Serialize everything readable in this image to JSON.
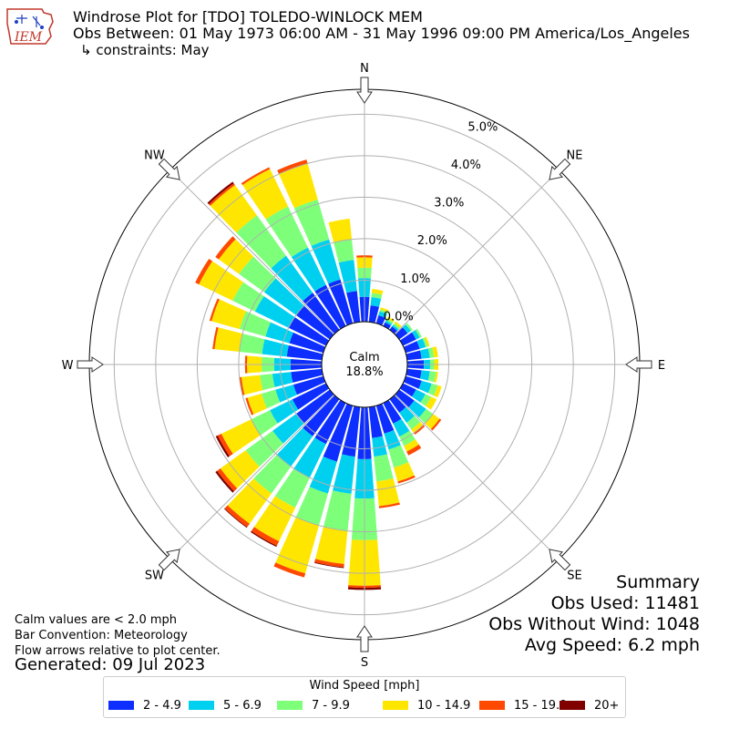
{
  "header": {
    "title": "Windrose Plot for [TDO] TOLEDO-WINLOCK MEM",
    "obs_between": "Obs Between: 01 May 1973 06:00 AM - 31 May 1996 09:00 PM America/Los_Angeles",
    "constraints": "↳ constraints: May",
    "logo_text": "IEM"
  },
  "notes": {
    "calm_values": "Calm values are < 2.0 mph",
    "bar_convention": "Bar Convention: Meteorology",
    "flow_arrows": "Flow arrows relative to plot center.",
    "generated": "Generated: 09 Jul 2023"
  },
  "summary": {
    "title": "Summary",
    "obs_used": "Obs Used: 11481",
    "obs_without_wind": "Obs Without Wind: 1048",
    "avg_speed": "Avg Speed: 6.2 mph"
  },
  "legend": {
    "title": "Wind Speed [mph]",
    "items": [
      {
        "label": "2 - 4.9",
        "color": "#0d2eff"
      },
      {
        "label": "5 - 6.9",
        "color": "#00d0f0"
      },
      {
        "label": "7 - 9.9",
        "color": "#7dff7a"
      },
      {
        "label": "10 - 14.9",
        "color": "#ffe600"
      },
      {
        "label": "15 - 19.9",
        "color": "#ff4800"
      },
      {
        "label": "20+",
        "color": "#800000"
      }
    ]
  },
  "chart_data": {
    "type": "windrose",
    "calm_label": "Calm",
    "calm_value": "18.8%",
    "calm_percent": 18.8,
    "radial_ticks": [
      0.0,
      1.0,
      2.0,
      3.0,
      4.0,
      5.0
    ],
    "radial_tick_labels": [
      "0.0%",
      "1.0%",
      "2.0%",
      "3.0%",
      "4.0%",
      "5.0%"
    ],
    "radial_max": 5.6,
    "directions": [
      "N",
      "NE",
      "E",
      "SE",
      "S",
      "SW",
      "W",
      "NW"
    ],
    "bins": [
      "2 - 4.9",
      "5 - 6.9",
      "7 - 9.9",
      "10 - 14.9",
      "15 - 19.9",
      "20+"
    ],
    "sectors": [
      {
        "dir": 0,
        "cum": [
          0.6,
          1.05,
          1.3,
          1.55,
          1.6,
          1.6
        ]
      },
      {
        "dir": 10,
        "cum": [
          0.4,
          0.6,
          0.7,
          0.8,
          0.8,
          0.8
        ]
      },
      {
        "dir": 20,
        "cum": [
          0.2,
          0.3,
          0.35,
          0.4,
          0.4,
          0.4
        ]
      },
      {
        "dir": 30,
        "cum": [
          0.1,
          0.15,
          0.2,
          0.25,
          0.25,
          0.25
        ]
      },
      {
        "dir": 40,
        "cum": [
          0.1,
          0.15,
          0.2,
          0.25,
          0.25,
          0.25
        ]
      },
      {
        "dir": 50,
        "cum": [
          0.25,
          0.35,
          0.4,
          0.4,
          0.4,
          0.4
        ]
      },
      {
        "dir": 60,
        "cum": [
          0.35,
          0.45,
          0.5,
          0.5,
          0.5,
          0.5
        ]
      },
      {
        "dir": 70,
        "cum": [
          0.35,
          0.5,
          0.55,
          0.6,
          0.6,
          0.6
        ]
      },
      {
        "dir": 80,
        "cum": [
          0.35,
          0.55,
          0.65,
          0.75,
          0.75,
          0.75
        ]
      },
      {
        "dir": 90,
        "cum": [
          0.4,
          0.55,
          0.65,
          0.75,
          0.75,
          0.75
        ]
      },
      {
        "dir": 100,
        "cum": [
          0.35,
          0.55,
          0.7,
          0.75,
          0.75,
          0.75
        ]
      },
      {
        "dir": 110,
        "cum": [
          0.4,
          0.65,
          0.8,
          0.9,
          0.9,
          0.9
        ]
      },
      {
        "dir": 120,
        "cum": [
          0.35,
          0.6,
          0.75,
          0.9,
          0.9,
          0.9
        ]
      },
      {
        "dir": 130,
        "cum": [
          0.45,
          0.8,
          1.0,
          1.2,
          1.25,
          1.25
        ]
      },
      {
        "dir": 140,
        "cum": [
          0.4,
          0.7,
          0.9,
          1.0,
          1.05,
          1.05
        ]
      },
      {
        "dir": 150,
        "cum": [
          0.55,
          0.9,
          1.15,
          1.3,
          1.4,
          1.4
        ]
      },
      {
        "dir": 160,
        "cum": [
          0.7,
          1.1,
          1.55,
          1.9,
          1.95,
          1.95
        ]
      },
      {
        "dir": 170,
        "cum": [
          0.75,
          1.2,
          1.8,
          2.4,
          2.45,
          2.45
        ]
      },
      {
        "dir": 180,
        "cum": [
          1.25,
          2.2,
          3.2,
          4.3,
          4.35,
          4.4
        ]
      },
      {
        "dir": 190,
        "cum": [
          1.2,
          2.1,
          3.0,
          3.8,
          3.88,
          3.9
        ]
      },
      {
        "dir": 200,
        "cum": [
          1.4,
          2.2,
          3.0,
          4.2,
          4.3,
          4.3
        ]
      },
      {
        "dir": 210,
        "cum": [
          1.1,
          2.0,
          2.8,
          3.7,
          3.82,
          3.85
        ]
      },
      {
        "dir": 220,
        "cum": [
          1.1,
          2.0,
          2.8,
          3.7,
          3.8,
          3.82
        ]
      },
      {
        "dir": 230,
        "cum": [
          1.0,
          1.7,
          2.5,
          3.25,
          3.35,
          3.4
        ]
      },
      {
        "dir": 240,
        "cum": [
          0.9,
          1.5,
          2.0,
          2.8,
          2.9,
          2.95
        ]
      },
      {
        "dir": 250,
        "cum": [
          0.75,
          1.2,
          1.55,
          1.9,
          1.95,
          1.95
        ]
      },
      {
        "dir": 260,
        "cum": [
          0.75,
          1.2,
          1.5,
          1.95,
          2.0,
          2.0
        ]
      },
      {
        "dir": 270,
        "cum": [
          0.75,
          1.15,
          1.45,
          1.8,
          1.85,
          1.85
        ]
      },
      {
        "dir": 280,
        "cum": [
          0.85,
          1.45,
          2.0,
          2.6,
          2.65,
          2.65
        ]
      },
      {
        "dir": 290,
        "cum": [
          0.85,
          1.45,
          2.1,
          2.8,
          2.85,
          2.85
        ]
      },
      {
        "dir": 300,
        "cum": [
          1.0,
          1.9,
          2.5,
          3.4,
          3.5,
          3.5
        ]
      },
      {
        "dir": 310,
        "cum": [
          1.0,
          1.95,
          2.7,
          3.3,
          3.4,
          3.4
        ]
      },
      {
        "dir": 320,
        "cum": [
          1.1,
          2.2,
          3.4,
          4.3,
          4.35,
          4.4
        ]
      },
      {
        "dir": 330,
        "cum": [
          1.1,
          2.1,
          3.2,
          4.2,
          4.25,
          4.25
        ]
      },
      {
        "dir": 340,
        "cum": [
          1.1,
          2.1,
          3.1,
          4.0,
          4.1,
          4.1
        ]
      },
      {
        "dir": 350,
        "cum": [
          0.75,
          1.5,
          2.0,
          2.5,
          2.5,
          2.5
        ]
      }
    ]
  }
}
